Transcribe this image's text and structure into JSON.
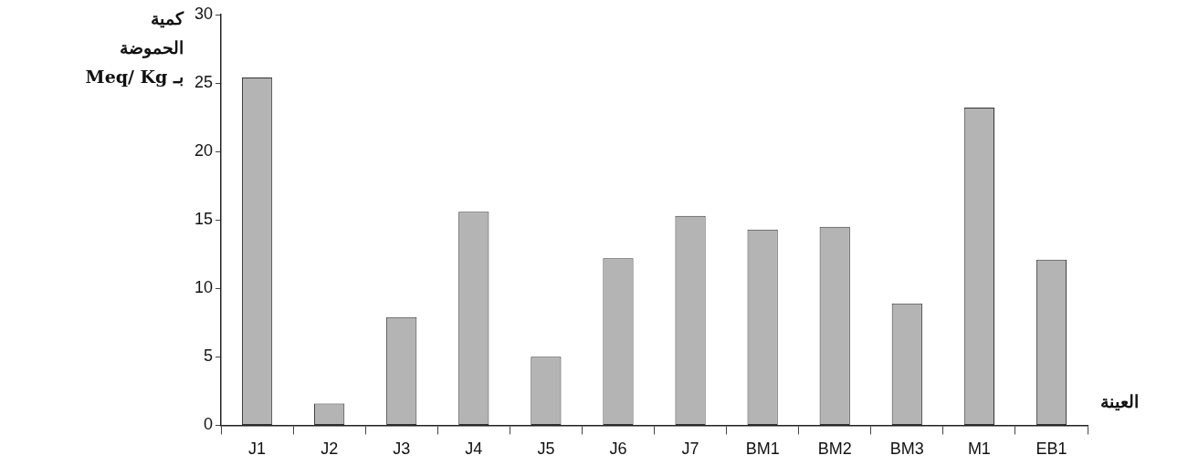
{
  "chart_data": {
    "type": "bar",
    "categories": [
      "J1",
      "J2",
      "J3",
      "J4",
      "J5",
      "J6",
      "J7",
      "BM1",
      "BM2",
      "BM3",
      "M1",
      "EB1"
    ],
    "values": [
      25.4,
      1.6,
      7.9,
      15.6,
      5.0,
      12.2,
      15.3,
      14.3,
      14.5,
      8.9,
      23.2,
      12.1
    ],
    "color": "#b4b4b4",
    "xlabel": "العينة",
    "ylabel": "كمية\nالحموضة\nبـ Meq/ Kg",
    "ylim": [
      0,
      30
    ],
    "yticks": [
      0,
      5,
      10,
      15,
      20,
      25,
      30
    ],
    "grid": false,
    "legend": false
  }
}
